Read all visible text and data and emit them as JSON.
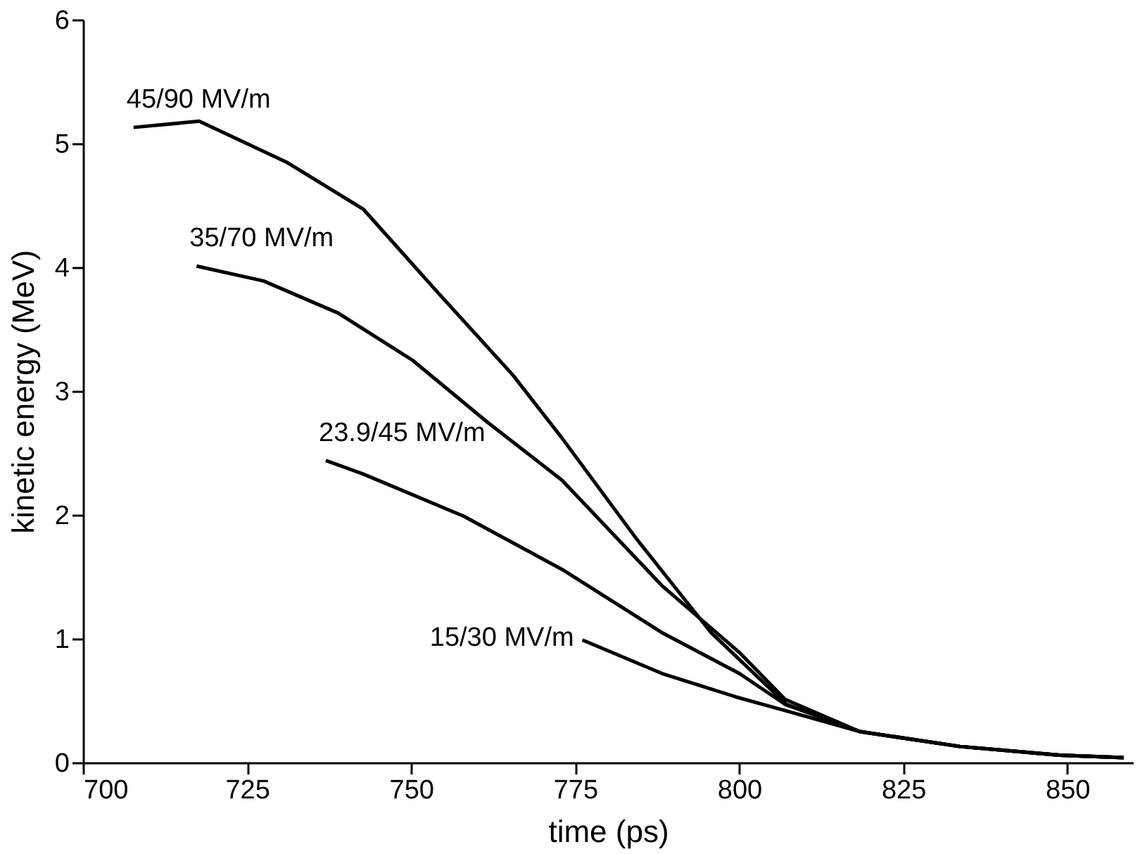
{
  "chart_data": {
    "type": "line",
    "xlabel": "time (ps)",
    "ylabel": "kinetic energy (MeV)",
    "xlim": [
      700,
      860
    ],
    "xticks": [
      700,
      725,
      750,
      775,
      800,
      825,
      850
    ],
    "ylim": [
      0,
      6
    ],
    "yticks": [
      0,
      1,
      2,
      3,
      4,
      5,
      6
    ],
    "grid": false,
    "legend": false,
    "marker": "none",
    "line_style": "solid",
    "series": [
      {
        "name": "45/90 MV/m",
        "color": "#000000",
        "x": [
          707.7,
          717.7,
          731,
          742.7,
          754,
          765.5,
          773,
          784.3,
          795.7,
          807.2,
          818.4,
          833.6,
          848.8,
          858.6
        ],
        "values": [
          5.13,
          5.18,
          4.85,
          4.47,
          3.8,
          3.13,
          2.62,
          1.81,
          1.05,
          0.47,
          0.25,
          0.13,
          0.06,
          0.04
        ]
      },
      {
        "name": "35/70 MV/m",
        "color": "#000000",
        "x": [
          717.3,
          727.5,
          738.9,
          750.2,
          761.6,
          773,
          788.2,
          800,
          807,
          818.4,
          833.6,
          848.8,
          858.6
        ],
        "values": [
          4.01,
          3.89,
          3.63,
          3.25,
          2.75,
          2.28,
          1.43,
          0.89,
          0.51,
          0.25,
          0.13,
          0.06,
          0.04
        ]
      },
      {
        "name": "23.9/45 MV/m",
        "color": "#000000",
        "x": [
          737,
          742.7,
          758,
          773,
          788.2,
          800,
          807,
          818.4,
          833.6,
          848.8,
          858.6
        ],
        "values": [
          2.44,
          2.33,
          1.99,
          1.56,
          1.05,
          0.72,
          0.47,
          0.25,
          0.13,
          0.06,
          0.04
        ]
      },
      {
        "name": "15/30 MV/m",
        "color": "#000000",
        "x": [
          776.1,
          788.2,
          799.5,
          807,
          818.4,
          833.6,
          848.8,
          858.6
        ],
        "values": [
          0.99,
          0.72,
          0.53,
          0.42,
          0.25,
          0.13,
          0.06,
          0.04
        ]
      }
    ]
  }
}
